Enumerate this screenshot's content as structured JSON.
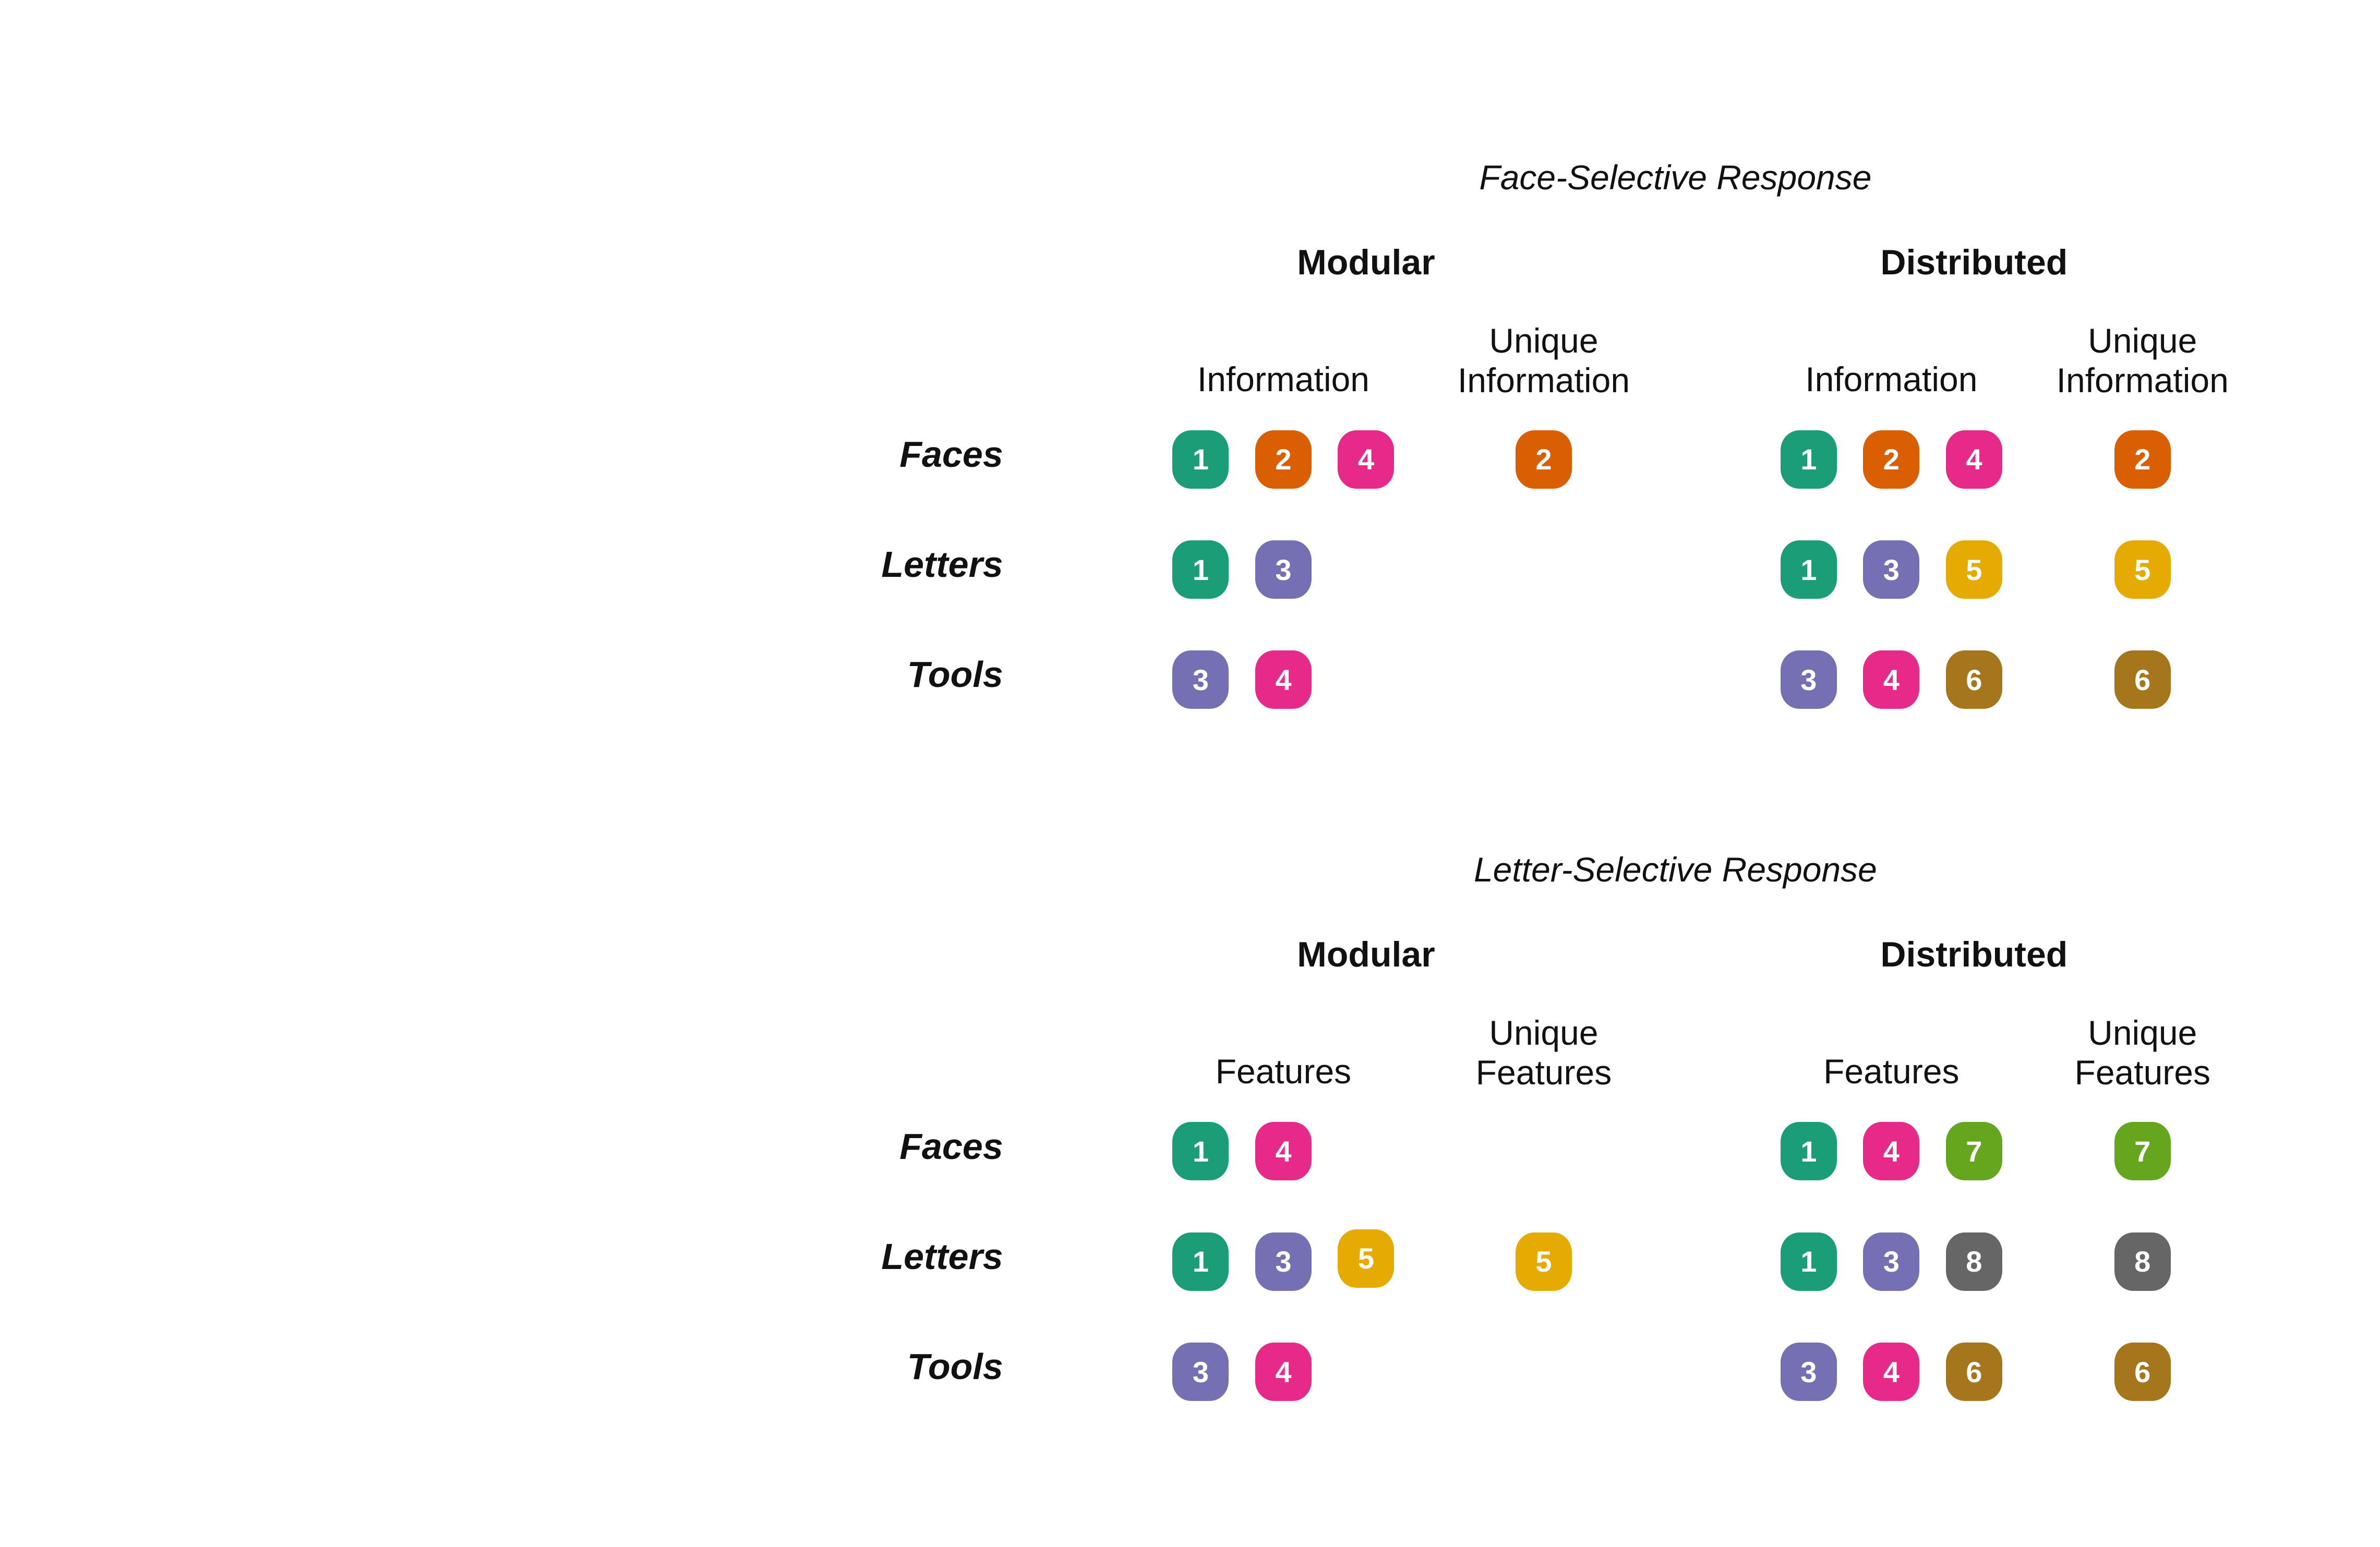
{
  "colors": {
    "1": "#1b9e77",
    "2": "#d95f02",
    "3": "#7570b3",
    "4": "#e7298a",
    "5": "#e6ab02",
    "6": "#a6761d",
    "7": "#66a61e",
    "8": "#666666"
  },
  "panels": [
    {
      "title": "Face-Selective Response",
      "models": [
        {
          "title": "Modular",
          "col_main": "Information",
          "col_unique": "Unique\nInformation",
          "rows": [
            {
              "label": "Faces",
              "main": [
                1,
                2,
                4
              ],
              "unique": [
                2
              ]
            },
            {
              "label": "Letters",
              "main": [
                1,
                3
              ],
              "unique": []
            },
            {
              "label": "Tools",
              "main": [
                3,
                4
              ],
              "unique": []
            }
          ]
        },
        {
          "title": "Distributed",
          "col_main": "Information",
          "col_unique": "Unique\nInformation",
          "rows": [
            {
              "label": "Faces",
              "main": [
                1,
                2,
                4
              ],
              "unique": [
                2
              ]
            },
            {
              "label": "Letters",
              "main": [
                1,
                3,
                5
              ],
              "unique": [
                5
              ]
            },
            {
              "label": "Tools",
              "main": [
                3,
                4,
                6
              ],
              "unique": [
                6
              ]
            }
          ]
        }
      ]
    },
    {
      "title": "Letter-Selective Response",
      "models": [
        {
          "title": "Modular",
          "col_main": "Features",
          "col_unique": "Unique\nFeatures",
          "rows": [
            {
              "label": "Faces",
              "main": [
                1,
                4
              ],
              "unique": []
            },
            {
              "label": "Letters",
              "main": [
                1,
                3,
                5
              ],
              "unique": [
                5
              ]
            },
            {
              "label": "Tools",
              "main": [
                3,
                4
              ],
              "unique": []
            }
          ]
        },
        {
          "title": "Distributed",
          "col_main": "Features",
          "col_unique": "Unique\nFeatures",
          "rows": [
            {
              "label": "Faces",
              "main": [
                1,
                4,
                7
              ],
              "unique": [
                7
              ]
            },
            {
              "label": "Letters",
              "main": [
                1,
                3,
                8
              ],
              "unique": [
                8
              ]
            },
            {
              "label": "Tools",
              "main": [
                3,
                4,
                6
              ],
              "unique": [
                6
              ]
            }
          ]
        }
      ]
    }
  ]
}
